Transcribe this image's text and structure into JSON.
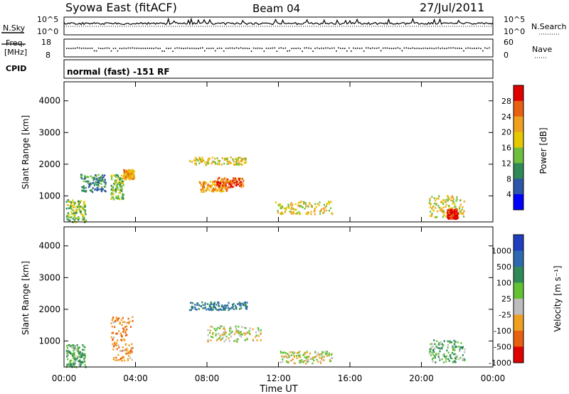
{
  "header": {
    "station": "Syowa East (fitACF)",
    "beam": "Beam 04",
    "date": "27/Jul/2011"
  },
  "noise_panel": {
    "left_label": "N.Sky",
    "left_ticks": [
      "10^5",
      "10^0"
    ],
    "right_label": "N.Search",
    "right_ticks": [
      "10^5",
      "10^0"
    ]
  },
  "freq_panel": {
    "left_label_1": "Freq.",
    "left_label_2": "[MHz]",
    "left_ticks": [
      "18",
      "8"
    ],
    "right_label": "Nave",
    "right_ticks": [
      "60",
      "0"
    ]
  },
  "cpid_panel": {
    "label": "CPID",
    "text": "normal (fast) -151 RF"
  },
  "power_panel": {
    "ylabel": "Slant Range [km]",
    "yticks": [
      "1000",
      "2000",
      "3000",
      "4000"
    ],
    "colorbar_label": "Power [dB]",
    "colorbar_ticks": [
      "4",
      "8",
      "12",
      "16",
      "20",
      "24",
      "28"
    ],
    "colors": [
      "#0000ff",
      "#2e56a8",
      "#2e8b57",
      "#6fbf3f",
      "#e6c800",
      "#f0a020",
      "#e86010",
      "#e00000"
    ]
  },
  "velocity_panel": {
    "ylabel": "Slant Range [km]",
    "yticks": [
      "1000",
      "2000",
      "3000",
      "4000"
    ],
    "colorbar_label": "Velocity [m s⁻¹]",
    "colorbar_ticks": [
      "1000",
      "500",
      "100",
      "25",
      "-25",
      "-100",
      "-500",
      "-1000"
    ],
    "colors": [
      "#1f3fbf",
      "#2e6ab0",
      "#2e8b57",
      "#62c232",
      "#bdbdbd",
      "#f0a020",
      "#e86010",
      "#e00000"
    ]
  },
  "xaxis": {
    "label": "Time UT",
    "ticks": [
      "00:00",
      "04:00",
      "08:00",
      "12:00",
      "16:00",
      "20:00",
      "00:00"
    ]
  },
  "chart_data": {
    "type": "heatmap",
    "title": "Syowa East (fitACF) Beam 04 27/Jul/2011",
    "xlabel": "Time UT",
    "ylabel": "Slant Range [km]",
    "xlim_hours": [
      0,
      24
    ],
    "ylim_km": [
      180,
      4600
    ],
    "power_scale_db": [
      0,
      30
    ],
    "velocity_scale_ms": [
      -1250,
      1250
    ],
    "power_features": [
      {
        "t0": 0.1,
        "t1": 1.2,
        "r0": 200,
        "r1": 900,
        "level": 3
      },
      {
        "t0": 0.9,
        "t1": 2.3,
        "r0": 1150,
        "r1": 1700,
        "level": 2
      },
      {
        "t0": 2.6,
        "t1": 3.3,
        "r0": 900,
        "r1": 1700,
        "level": 3
      },
      {
        "t0": 3.3,
        "t1": 3.9,
        "r0": 1550,
        "r1": 1850,
        "level": 5
      },
      {
        "t0": 7.0,
        "t1": 10.2,
        "r0": 2000,
        "r1": 2250,
        "level": 4
      },
      {
        "t0": 7.5,
        "t1": 9.2,
        "r0": 1150,
        "r1": 1500,
        "level": 5
      },
      {
        "t0": 8.5,
        "t1": 10.0,
        "r0": 1300,
        "r1": 1600,
        "level": 6
      },
      {
        "t0": 11.8,
        "t1": 15.0,
        "r0": 450,
        "r1": 850,
        "level": 4
      },
      {
        "t0": 20.4,
        "t1": 22.4,
        "r0": 350,
        "r1": 1050,
        "level": 4
      },
      {
        "t0": 21.4,
        "t1": 22.0,
        "r0": 300,
        "r1": 600,
        "level": 7
      }
    ],
    "velocity_features": [
      {
        "t0": 0.1,
        "t1": 1.2,
        "r0": 200,
        "r1": 900,
        "v": 100
      },
      {
        "t0": 2.6,
        "t1": 3.8,
        "r0": 400,
        "r1": 1800,
        "v": -100
      },
      {
        "t0": 7.0,
        "t1": 10.2,
        "r0": 2000,
        "r1": 2250,
        "v": 500
      },
      {
        "t0": 8.0,
        "t1": 11.0,
        "r0": 1000,
        "r1": 1500,
        "v": 0
      },
      {
        "t0": 12.0,
        "t1": 15.0,
        "r0": 300,
        "r1": 700,
        "v": 0
      },
      {
        "t0": 20.4,
        "t1": 22.4,
        "r0": 350,
        "r1": 1050,
        "v": 100
      }
    ]
  }
}
